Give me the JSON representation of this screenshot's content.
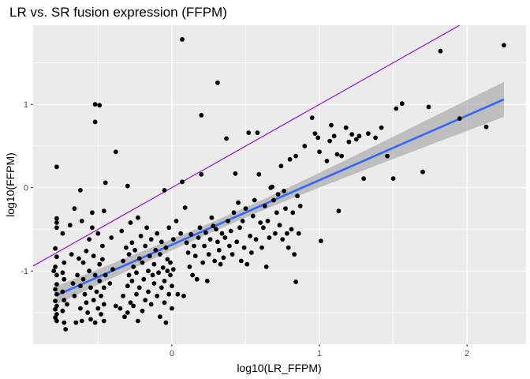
{
  "chart_data": {
    "type": "scatter",
    "title": "LR vs. SR fusion expression (FFPM)",
    "xlabel": "log10(LR_FFPM)",
    "ylabel": "log10(FFPM)",
    "xlim": [
      -0.94,
      2.4
    ],
    "ylim": [
      -1.88,
      1.95
    ],
    "x_ticks": [
      0,
      1,
      2
    ],
    "x_tick_labels": [
      "0",
      "1",
      "2"
    ],
    "y_ticks": [
      -1,
      0,
      1
    ],
    "y_tick_labels": [
      "-1",
      "0",
      "1"
    ],
    "points": [
      [
        -0.78,
        0.25
      ],
      [
        -0.78,
        -0.37
      ],
      [
        -0.78,
        -0.42
      ],
      [
        -0.78,
        -0.48
      ],
      [
        -0.79,
        -0.73
      ],
      [
        -0.78,
        -0.83
      ],
      [
        -0.79,
        -0.95
      ],
      [
        -0.8,
        -1.0
      ],
      [
        -0.78,
        -1.05
      ],
      [
        -0.78,
        -1.16
      ],
      [
        -0.79,
        -1.22
      ],
      [
        -0.78,
        -1.28
      ],
      [
        -0.79,
        -1.36
      ],
      [
        -0.78,
        -1.42
      ],
      [
        -0.79,
        -1.46
      ],
      [
        -0.78,
        -1.52
      ],
      [
        -0.79,
        -1.56
      ],
      [
        -0.78,
        -1.6
      ],
      [
        -0.74,
        -0.55
      ],
      [
        -0.73,
        -0.9
      ],
      [
        -0.74,
        -1.02
      ],
      [
        -0.73,
        -1.1
      ],
      [
        -0.74,
        -1.25
      ],
      [
        -0.73,
        -1.35
      ],
      [
        -0.74,
        -1.48
      ],
      [
        -0.73,
        -1.62
      ],
      [
        -0.72,
        -1.7
      ],
      [
        -0.71,
        -1.4
      ],
      [
        -0.69,
        -0.45
      ],
      [
        -0.68,
        -0.8
      ],
      [
        -0.67,
        -1.15
      ],
      [
        -0.66,
        -1.3
      ],
      [
        -0.65,
        -1.62
      ],
      [
        -0.64,
        -1.05
      ],
      [
        -0.63,
        -0.85
      ],
      [
        -0.62,
        -1.18
      ],
      [
        -0.62,
        -1.45
      ],
      [
        -0.61,
        -0.4
      ],
      [
        -0.61,
        -1.6
      ],
      [
        -0.6,
        -0.9
      ],
      [
        -0.6,
        -1.1
      ],
      [
        -0.59,
        -1.28
      ],
      [
        -0.58,
        -0.76
      ],
      [
        -0.58,
        -1.38
      ],
      [
        -0.57,
        -1.5
      ],
      [
        -0.56,
        -0.62
      ],
      [
        -0.56,
        -1.0
      ],
      [
        -0.55,
        -1.2
      ],
      [
        -0.55,
        -1.58
      ],
      [
        -0.54,
        -0.3
      ],
      [
        -0.54,
        -0.48
      ],
      [
        -0.53,
        -0.82
      ],
      [
        -0.53,
        -1.35
      ],
      [
        -0.52,
        -1.05
      ],
      [
        -0.52,
        -1.62
      ],
      [
        -0.51,
        -1.25
      ],
      [
        -0.5,
        -0.55
      ],
      [
        -0.5,
        -1.45
      ],
      [
        -0.49,
        -0.92
      ],
      [
        -0.49,
        -1.12
      ],
      [
        -0.48,
        -1.3
      ],
      [
        -0.48,
        -1.52
      ],
      [
        -0.47,
        -0.7
      ],
      [
        -0.47,
        -0.86
      ],
      [
        -0.46,
        -1.2
      ],
      [
        -0.46,
        -1.4
      ],
      [
        -0.46,
        -1.6
      ],
      [
        -0.45,
        -1.05
      ],
      [
        -0.52,
        1.0
      ],
      [
        -0.49,
        0.99
      ],
      [
        -0.52,
        0.79
      ],
      [
        -0.45,
        0.06
      ],
      [
        -0.46,
        -0.28
      ],
      [
        -0.42,
        -1.15
      ],
      [
        -0.41,
        -0.6
      ],
      [
        -0.4,
        -0.98
      ],
      [
        -0.62,
        -0.03
      ],
      [
        -0.66,
        -0.25
      ],
      [
        -0.38,
        0.43
      ],
      [
        -0.38,
        -1.42
      ],
      [
        -0.34,
        -0.52
      ],
      [
        -0.33,
        -0.88
      ],
      [
        -0.33,
        -1.3
      ],
      [
        -0.32,
        -1.55
      ],
      [
        -0.31,
        -0.72
      ],
      [
        -0.3,
        -1.18
      ],
      [
        -0.3,
        -1.5
      ],
      [
        -0.29,
        -0.8
      ],
      [
        -0.29,
        -1.05
      ],
      [
        -0.28,
        -0.42
      ],
      [
        -0.28,
        -1.38
      ],
      [
        -0.27,
        -0.66
      ],
      [
        -0.27,
        -1.12
      ],
      [
        -0.26,
        -0.95
      ],
      [
        -0.26,
        -1.42
      ],
      [
        -0.25,
        -0.75
      ],
      [
        -0.24,
        -1.02
      ],
      [
        -0.24,
        -1.28
      ],
      [
        -0.23,
        -0.36
      ],
      [
        -0.23,
        -1.6
      ],
      [
        -0.22,
        -0.85
      ],
      [
        -0.22,
        -1.2
      ],
      [
        -0.21,
        -0.58
      ],
      [
        -0.2,
        -0.9
      ],
      [
        -0.2,
        -1.48
      ],
      [
        -0.19,
        -1.1
      ],
      [
        -0.18,
        -0.7
      ],
      [
        -0.18,
        -1.35
      ],
      [
        -0.17,
        -0.48
      ],
      [
        -0.16,
        -1.0
      ],
      [
        -0.16,
        -1.25
      ],
      [
        -0.15,
        -0.82
      ],
      [
        -0.14,
        -1.4
      ],
      [
        -0.14,
        -0.62
      ],
      [
        -0.13,
        -1.05
      ],
      [
        -0.12,
        -0.92
      ],
      [
        -0.12,
        -1.15
      ],
      [
        -0.11,
        -0.75
      ],
      [
        -0.1,
        -1.3
      ],
      [
        -0.1,
        -0.55
      ],
      [
        -0.3,
        0.02
      ],
      [
        -0.35,
        -1.45
      ],
      [
        -0.09,
        -1.02
      ],
      [
        -0.08,
        -0.8
      ],
      [
        -0.08,
        -1.55
      ],
      [
        -0.07,
        -1.2
      ],
      [
        -0.07,
        -0.65
      ],
      [
        -0.06,
        -0.96
      ],
      [
        -0.05,
        -1.38
      ],
      [
        -0.05,
        -1.12
      ],
      [
        -0.04,
        -0.72
      ],
      [
        -0.04,
        -1.62
      ],
      [
        -0.03,
        -1.0
      ],
      [
        -0.03,
        -0.86
      ],
      [
        -0.02,
        -1.28
      ],
      [
        -0.02,
        -0.48
      ],
      [
        -0.01,
        -1.05
      ],
      [
        -0.01,
        -0.9
      ],
      [
        0.0,
        -1.18
      ],
      [
        0.0,
        -1.45
      ],
      [
        0.01,
        -0.62
      ],
      [
        0.01,
        -0.98
      ],
      [
        -0.05,
        -0.03
      ],
      [
        0.03,
        -0.4
      ],
      [
        0.04,
        -1.28
      ],
      [
        0.06,
        -0.55
      ],
      [
        0.07,
        0.07
      ],
      [
        0.08,
        -1.3
      ],
      [
        0.09,
        -0.24
      ],
      [
        0.07,
        1.78
      ],
      [
        0.2,
        0.87
      ],
      [
        0.31,
        1.26
      ],
      [
        0.37,
        0.59
      ],
      [
        0.2,
        0.16
      ],
      [
        0.1,
        -0.66
      ],
      [
        0.11,
        -0.78
      ],
      [
        0.12,
        -0.95
      ],
      [
        0.13,
        -0.56
      ],
      [
        0.14,
        -1.05
      ],
      [
        0.15,
        -0.7
      ],
      [
        0.16,
        -0.82
      ],
      [
        0.17,
        -1.1
      ],
      [
        0.18,
        -0.6
      ],
      [
        0.19,
        -0.48
      ],
      [
        0.21,
        -0.9
      ],
      [
        0.22,
        -0.7
      ],
      [
        0.23,
        -0.54
      ],
      [
        0.24,
        -1.12
      ],
      [
        0.25,
        -0.8
      ],
      [
        0.26,
        -0.62
      ],
      [
        0.27,
        -0.36
      ],
      [
        0.28,
        -0.46
      ],
      [
        0.29,
        -0.88
      ],
      [
        0.3,
        -0.5
      ],
      [
        0.31,
        -0.65
      ],
      [
        0.32,
        -0.75
      ],
      [
        0.33,
        -0.92
      ],
      [
        0.34,
        -0.55
      ],
      [
        0.35,
        -0.84
      ],
      [
        0.36,
        -0.6
      ],
      [
        0.38,
        -0.4
      ],
      [
        0.39,
        -0.7
      ],
      [
        0.4,
        -0.52
      ],
      [
        0.41,
        -0.8
      ],
      [
        0.42,
        -0.3
      ],
      [
        0.43,
        0.17
      ],
      [
        0.44,
        -0.65
      ],
      [
        0.45,
        -0.18
      ],
      [
        0.46,
        -0.48
      ],
      [
        0.47,
        -0.88
      ],
      [
        0.48,
        -0.4
      ],
      [
        0.49,
        -0.72
      ],
      [
        0.5,
        -0.25
      ],
      [
        0.51,
        -0.92
      ],
      [
        0.52,
        0.66
      ],
      [
        0.53,
        -0.58
      ],
      [
        0.54,
        -0.78
      ],
      [
        0.55,
        -0.34
      ],
      [
        0.56,
        -0.15
      ],
      [
        0.57,
        -0.62
      ],
      [
        0.58,
        0.66
      ],
      [
        0.59,
        0.16
      ],
      [
        0.6,
        -0.42
      ],
      [
        0.61,
        -0.72
      ],
      [
        0.62,
        -0.48
      ],
      [
        0.63,
        -0.22
      ],
      [
        0.64,
        -0.95
      ],
      [
        0.65,
        -0.4
      ],
      [
        0.66,
        -0.6
      ],
      [
        0.67,
        0.0
      ],
      [
        0.68,
        0.01
      ],
      [
        0.69,
        -0.15
      ],
      [
        0.7,
        -0.55
      ],
      [
        0.71,
        -0.3
      ],
      [
        0.72,
        -0.08
      ],
      [
        0.73,
        -0.45
      ],
      [
        0.74,
        0.26
      ],
      [
        0.75,
        -0.62
      ],
      [
        0.76,
        -0.04
      ],
      [
        0.77,
        -0.25
      ],
      [
        0.78,
        -0.55
      ],
      [
        0.79,
        -0.72
      ],
      [
        0.8,
        0.34
      ],
      [
        0.81,
        -0.5
      ],
      [
        0.82,
        -0.3
      ],
      [
        0.83,
        -0.8
      ],
      [
        0.84,
        0.38
      ],
      [
        0.85,
        -0.1
      ],
      [
        0.86,
        -0.55
      ],
      [
        0.87,
        -0.22
      ],
      [
        0.84,
        -1.13
      ],
      [
        0.9,
        0.5
      ],
      [
        0.95,
        0.84
      ],
      [
        0.97,
        0.65
      ],
      [
        0.99,
        0.6
      ],
      [
        1.0,
        0.43
      ],
      [
        1.01,
        -0.64
      ],
      [
        1.05,
        0.32
      ],
      [
        1.07,
        0.56
      ],
      [
        1.08,
        0.75
      ],
      [
        1.1,
        0.62
      ],
      [
        1.12,
        0.4
      ],
      [
        1.13,
        -0.28
      ],
      [
        1.15,
        0.38
      ],
      [
        1.18,
        0.72
      ],
      [
        1.2,
        0.55
      ],
      [
        1.22,
        0.64
      ],
      [
        1.25,
        0.58
      ],
      [
        1.27,
        0.62
      ],
      [
        1.3,
        0.11
      ],
      [
        1.33,
        0.65
      ],
      [
        1.38,
        0.6
      ],
      [
        1.42,
        0.72
      ],
      [
        1.46,
        0.38
      ],
      [
        1.5,
        0.11
      ],
      [
        1.52,
        0.95
      ],
      [
        1.56,
        1.01
      ],
      [
        1.7,
        0.19
      ],
      [
        1.74,
        0.97
      ],
      [
        1.82,
        1.64
      ],
      [
        1.95,
        0.83
      ],
      [
        2.13,
        0.73
      ],
      [
        2.25,
        1.71
      ]
    ],
    "identity_line": {
      "slope": 1,
      "intercept": 0,
      "color": "#9400D3"
    },
    "fit": {
      "method": "lm",
      "color": "#3366FF",
      "band_color": "#999999",
      "x": [
        -0.78,
        2.25
      ],
      "y": [
        -1.29,
        1.06
      ],
      "se_lower": [
        -1.4,
        0.85
      ],
      "se_upper": [
        -1.18,
        1.27
      ],
      "se_center_x": 0.4
    },
    "colors": {
      "panel": "#EBEBEB",
      "grid_major": "#FFFFFF",
      "point": "#000000"
    }
  }
}
